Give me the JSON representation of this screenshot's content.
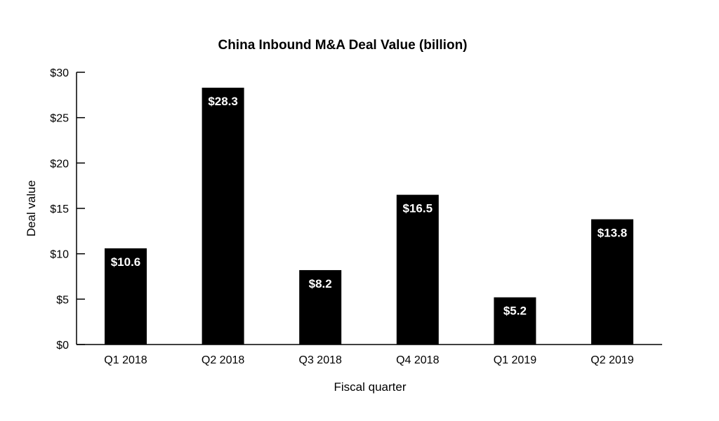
{
  "chart_data": {
    "type": "bar",
    "title": "China Inbound M&A Deal Value (billion)",
    "xlabel": "Fiscal quarter",
    "ylabel": "Deal value",
    "categories": [
      "Q1 2018",
      "Q2 2018",
      "Q3 2018",
      "Q4 2018",
      "Q1 2019",
      "Q2 2019"
    ],
    "values": [
      10.6,
      28.3,
      8.2,
      16.5,
      5.2,
      13.8
    ],
    "data_labels": [
      "$10.6",
      "$28.3",
      "$8.2",
      "$16.5",
      "$5.2",
      "$13.8"
    ],
    "ylim": [
      0,
      30
    ],
    "yticks": [
      0,
      5,
      10,
      15,
      20,
      25,
      30
    ],
    "ytick_labels": [
      "$0",
      "$5",
      "$10",
      "$15",
      "$20",
      "$25",
      "$30"
    ],
    "grid": false,
    "legend": "none",
    "bar_color": "#000000",
    "label_color": "#ffffff"
  }
}
